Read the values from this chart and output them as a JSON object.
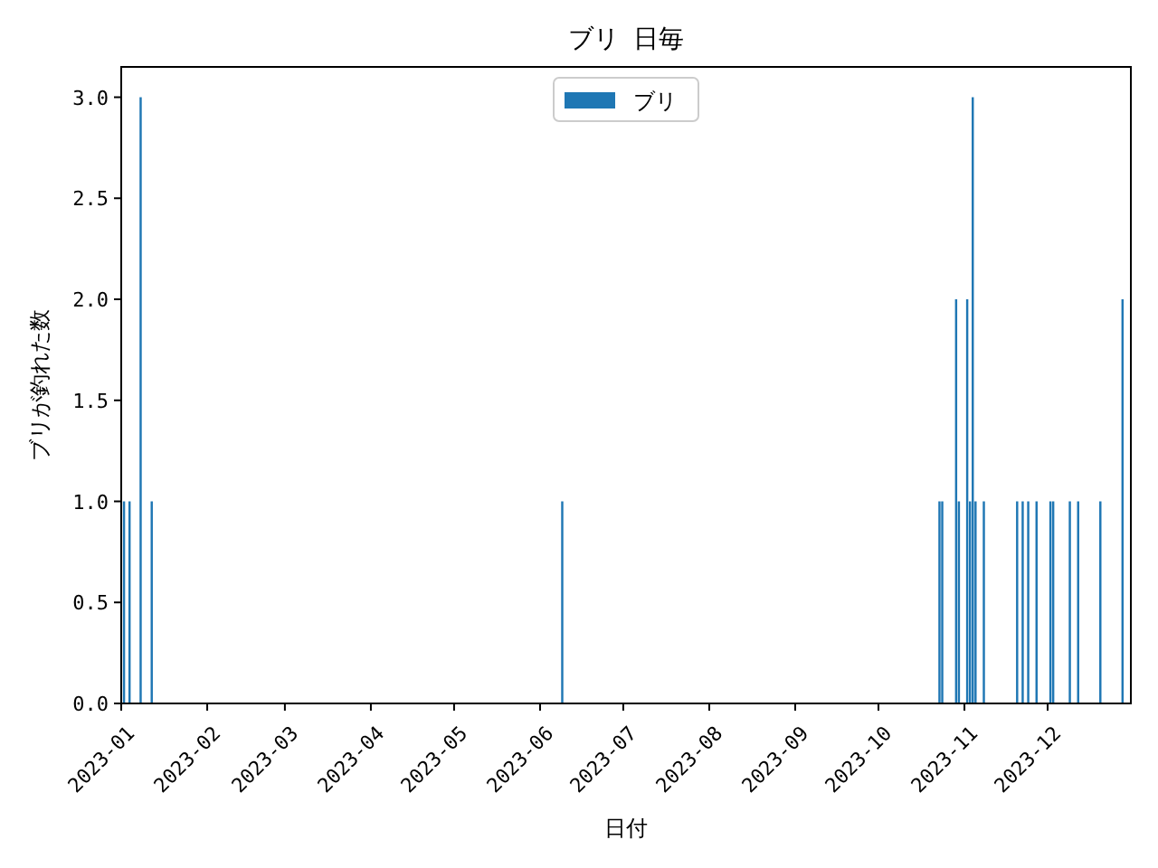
{
  "chart_data": {
    "type": "bar",
    "title": "ブリ 日毎",
    "xlabel": "日付",
    "ylabel": "ブリが釣れた数",
    "x": [
      "2023-01-02",
      "2023-01-04",
      "2023-01-08",
      "2023-01-12",
      "2023-06-09",
      "2023-10-23",
      "2023-10-24",
      "2023-10-29",
      "2023-10-30",
      "2023-11-02",
      "2023-11-03",
      "2023-11-04",
      "2023-11-05",
      "2023-11-08",
      "2023-11-20",
      "2023-11-22",
      "2023-11-24",
      "2023-11-27",
      "2023-12-02",
      "2023-12-03",
      "2023-12-09",
      "2023-12-12",
      "2023-12-20",
      "2023-12-28"
    ],
    "series": [
      {
        "name": "ブリ",
        "color": "#1f77b4",
        "values": [
          1,
          1,
          3,
          1,
          1,
          1,
          1,
          2,
          1,
          2,
          1,
          3,
          1,
          1,
          1,
          1,
          1,
          1,
          1,
          1,
          1,
          1,
          1,
          2
        ]
      }
    ],
    "xlim": [
      "2023-01-01",
      "2023-12-31"
    ],
    "xticks": [
      {
        "value": "2023-01-01",
        "label": "2023-01"
      },
      {
        "value": "2023-02-01",
        "label": "2023-02"
      },
      {
        "value": "2023-03-01",
        "label": "2023-03"
      },
      {
        "value": "2023-04-01",
        "label": "2023-04"
      },
      {
        "value": "2023-05-01",
        "label": "2023-05"
      },
      {
        "value": "2023-06-01",
        "label": "2023-06"
      },
      {
        "value": "2023-07-01",
        "label": "2023-07"
      },
      {
        "value": "2023-08-01",
        "label": "2023-08"
      },
      {
        "value": "2023-09-01",
        "label": "2023-09"
      },
      {
        "value": "2023-10-01",
        "label": "2023-10"
      },
      {
        "value": "2023-11-01",
        "label": "2023-11"
      },
      {
        "value": "2023-12-01",
        "label": "2023-12"
      }
    ],
    "ylim": [
      0,
      3.15
    ],
    "yticks": [
      {
        "value": 0,
        "label": "0.0"
      },
      {
        "value": 0.5,
        "label": "0.5"
      },
      {
        "value": 1,
        "label": "1.0"
      },
      {
        "value": 1.5,
        "label": "1.5"
      },
      {
        "value": 2,
        "label": "2.0"
      },
      {
        "value": 2.5,
        "label": "2.5"
      },
      {
        "value": 3,
        "label": "3.0"
      }
    ],
    "legend": "top",
    "grid": false
  }
}
